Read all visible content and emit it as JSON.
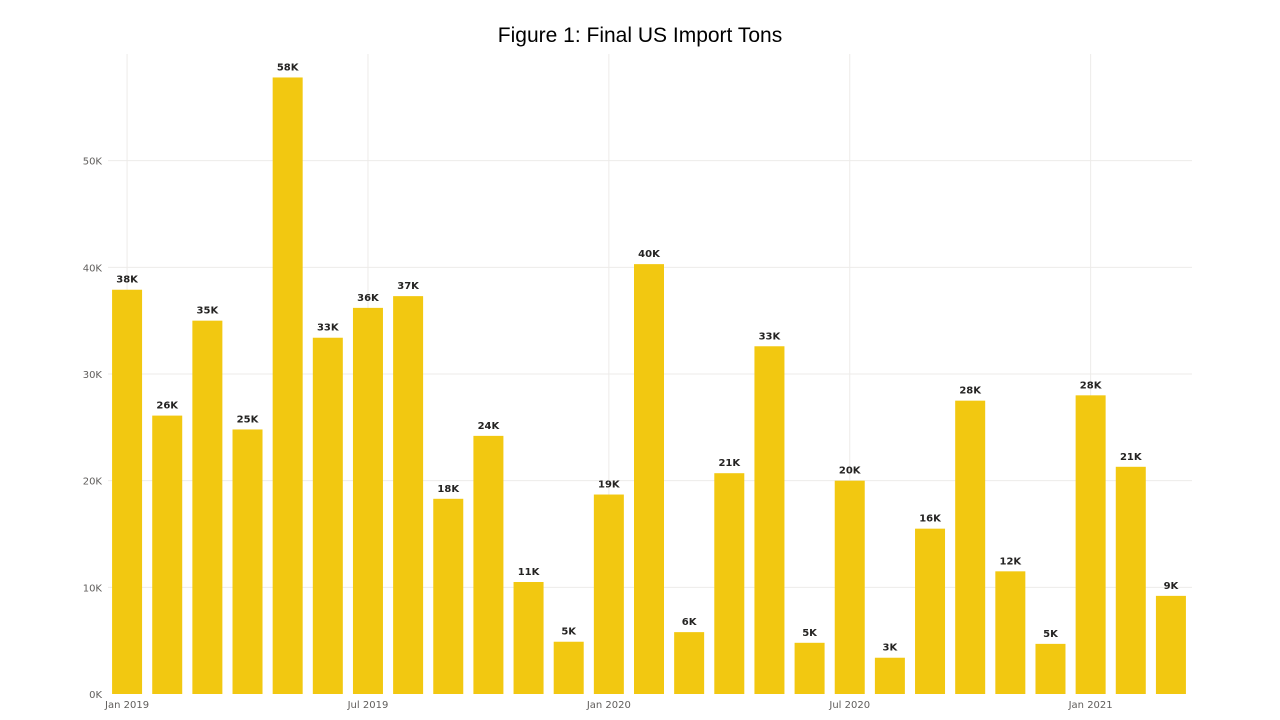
{
  "chart_data": {
    "type": "bar",
    "title": "Figure 1: Final US Import Tons",
    "xlabel": "",
    "ylabel": "",
    "ylim": [
      0,
      60000
    ],
    "y_ticks": [
      0,
      10000,
      20000,
      30000,
      40000,
      50000
    ],
    "y_tick_labels": [
      "0K",
      "10K",
      "20K",
      "30K",
      "40K",
      "50K"
    ],
    "x_ticks": [
      {
        "index": 0,
        "label": "Jan 2019"
      },
      {
        "index": 6,
        "label": "Jul 2019"
      },
      {
        "index": 12,
        "label": "Jan 2020"
      },
      {
        "index": 18,
        "label": "Jul 2020"
      },
      {
        "index": 24,
        "label": "Jan 2021"
      }
    ],
    "grid": true,
    "bar_color": "#F2C811",
    "categories": [
      "Jan 2019",
      "Feb 2019",
      "Mar 2019",
      "Apr 2019",
      "May 2019",
      "Jun 2019",
      "Jul 2019",
      "Aug 2019",
      "Sep 2019",
      "Oct 2019",
      "Nov 2019",
      "Dec 2019",
      "Jan 2020",
      "Feb 2020",
      "Mar 2020",
      "Apr 2020",
      "May 2020",
      "Jun 2020",
      "Jul 2020",
      "Aug 2020",
      "Sep 2020",
      "Oct 2020",
      "Nov 2020",
      "Dec 2020",
      "Jan 2021",
      "Feb 2021",
      "Mar 2021"
    ],
    "values": [
      37900,
      26100,
      35000,
      24800,
      57800,
      33400,
      36200,
      37300,
      18300,
      24200,
      10500,
      4900,
      18700,
      40300,
      5800,
      20700,
      32600,
      4800,
      20000,
      3400,
      15500,
      27500,
      11500,
      4700,
      28000,
      21300,
      9200
    ],
    "data_labels": [
      "38K",
      "26K",
      "35K",
      "25K",
      "58K",
      "33K",
      "36K",
      "37K",
      "18K",
      "24K",
      "11K",
      "5K",
      "19K",
      "40K",
      "6K",
      "21K",
      "33K",
      "5K",
      "20K",
      "3K",
      "16K",
      "28K",
      "12K",
      "5K",
      "28K",
      "21K",
      "9K"
    ]
  }
}
